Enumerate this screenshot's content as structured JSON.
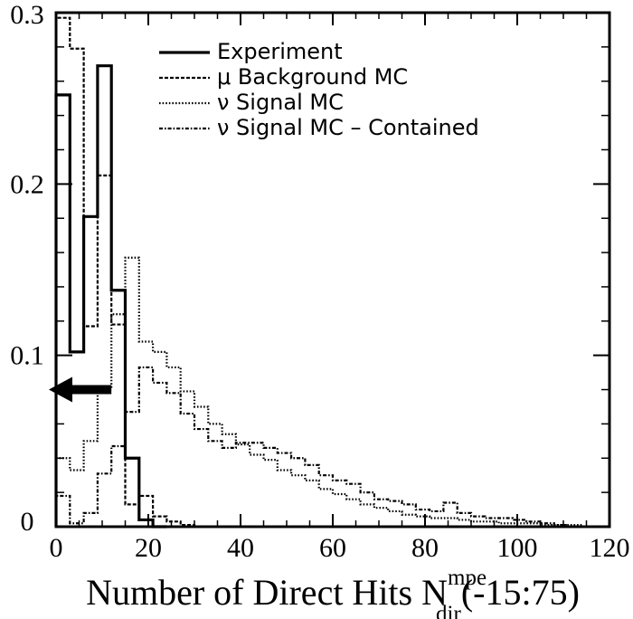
{
  "chart_data": {
    "type": "line",
    "xlabel_main": "Number of Direct Hits N",
    "xlabel_super": "mpe",
    "xlabel_sub": "dir",
    "xlabel_tail": "(-15:75)",
    "ylabel": "",
    "xlim": [
      0,
      120
    ],
    "ylim": [
      0,
      0.3
    ],
    "x_ticks": [
      0,
      20,
      40,
      60,
      80,
      100,
      120
    ],
    "x_tick_labels": [
      "0",
      "20",
      "40",
      "60",
      "80",
      "100",
      "120"
    ],
    "y_ticks": [
      0,
      0.1,
      0.2,
      0.3
    ],
    "y_tick_labels": [
      "0",
      "0.1",
      "0.2",
      "0.3"
    ],
    "bin_width": 3,
    "legend_position": "top-right",
    "annotation": {
      "type": "arrow",
      "direction": "left",
      "x": 12,
      "y": 0.08
    },
    "series": [
      {
        "name": "Experiment",
        "style": "solid",
        "bins": [
          0,
          3,
          6,
          9,
          12,
          15,
          18,
          21,
          24
        ],
        "values": [
          0.252,
          0.102,
          0.181,
          0.269,
          0.138,
          0.04,
          0.004,
          0.0
        ]
      },
      {
        "name": "μ Background MC",
        "style": "dashed",
        "bins": [
          0,
          3,
          6,
          9,
          12,
          15,
          18,
          21,
          24,
          27,
          30
        ],
        "values": [
          0.297,
          0.279,
          0.117,
          0.205,
          0.118,
          0.013,
          0.018,
          0.006,
          0.003,
          0.001
        ]
      },
      {
        "name": "ν Signal MC",
        "style": "dotted",
        "bins": [
          0,
          3,
          6,
          9,
          12,
          15,
          18,
          21,
          24,
          27,
          30,
          33,
          36,
          39,
          42,
          45,
          48,
          51,
          54,
          57,
          60,
          63,
          66,
          69,
          72,
          75,
          78,
          81,
          84,
          87,
          90,
          93,
          96,
          99,
          102,
          105,
          108,
          111,
          114
        ],
        "values": [
          0.04,
          0.033,
          0.05,
          0.081,
          0.124,
          0.157,
          0.108,
          0.102,
          0.093,
          0.079,
          0.07,
          0.06,
          0.054,
          0.048,
          0.042,
          0.039,
          0.033,
          0.03,
          0.027,
          0.022,
          0.019,
          0.016,
          0.013,
          0.011,
          0.009,
          0.007,
          0.006,
          0.005,
          0.005,
          0.004,
          0.003,
          0.003,
          0.002,
          0.002,
          0.002,
          0.001,
          0.001,
          0.001
        ]
      },
      {
        "name": "ν Signal MC – Contained",
        "style": "dash-dot",
        "bins": [
          0,
          3,
          6,
          9,
          12,
          15,
          18,
          21,
          24,
          27,
          30,
          33,
          36,
          39,
          42,
          45,
          48,
          51,
          54,
          57,
          60,
          63,
          66,
          69,
          72,
          75,
          78,
          81,
          84,
          87,
          90,
          93,
          96,
          99,
          102,
          105,
          108,
          111,
          114
        ],
        "values": [
          0.018,
          0.002,
          0.008,
          0.031,
          0.047,
          0.067,
          0.093,
          0.084,
          0.078,
          0.066,
          0.057,
          0.05,
          0.046,
          0.049,
          0.049,
          0.046,
          0.043,
          0.04,
          0.036,
          0.03,
          0.027,
          0.025,
          0.02,
          0.016,
          0.015,
          0.013,
          0.01,
          0.009,
          0.014,
          0.008,
          0.006,
          0.005,
          0.005,
          0.004,
          0.003,
          0.002,
          0.001,
          0.0
        ]
      }
    ]
  }
}
